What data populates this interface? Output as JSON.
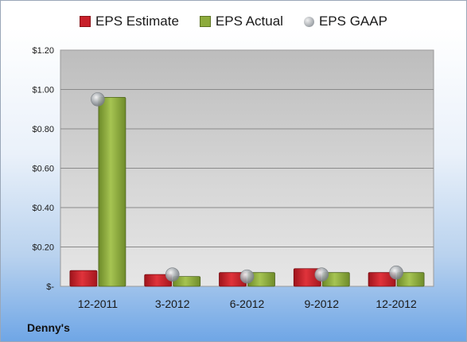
{
  "company": "Denny's",
  "colors": {
    "estimate": "#c8202a",
    "actual": "#8dab3c",
    "gaap": "#a6abb0"
  },
  "chart_data": {
    "type": "bar",
    "categories": [
      "12-2011",
      "3-2012",
      "6-2012",
      "9-2012",
      "12-2012"
    ],
    "series": [
      {
        "name": "EPS Estimate",
        "type": "bar",
        "values": [
          0.08,
          0.06,
          0.07,
          0.09,
          0.07
        ]
      },
      {
        "name": "EPS Actual",
        "type": "bar",
        "values": [
          0.96,
          0.05,
          0.07,
          0.07,
          0.07
        ]
      },
      {
        "name": "EPS GAAP",
        "type": "scatter",
        "values": [
          0.95,
          0.06,
          0.05,
          0.06,
          0.07
        ]
      }
    ],
    "y_ticks": [
      {
        "value": 0,
        "label": "$-"
      },
      {
        "value": 0.2,
        "label": "$0.20"
      },
      {
        "value": 0.4,
        "label": "$0.40"
      },
      {
        "value": 0.6,
        "label": "$0.60"
      },
      {
        "value": 0.8,
        "label": "$0.80"
      },
      {
        "value": 1.0,
        "label": "$1.00"
      },
      {
        "value": 1.2,
        "label": "$1.20"
      }
    ],
    "ylim": [
      0,
      1.2
    ],
    "grid": true,
    "legend_position": "top"
  }
}
